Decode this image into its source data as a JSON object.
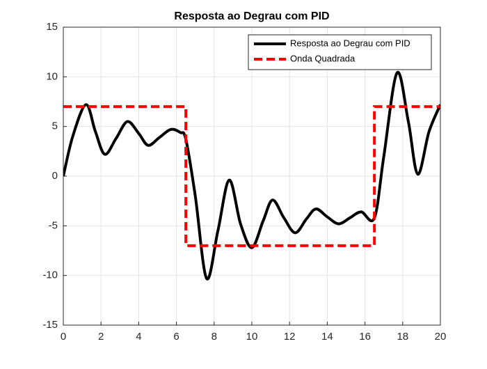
{
  "chart_data": {
    "type": "line",
    "title": "Resposta ao Degrau com PID",
    "series": [
      {
        "name": "Resposta ao Degrau com PID",
        "color": "#000000",
        "dash": "solid",
        "x": [
          0,
          0.5,
          1.2,
          1.7,
          2.2,
          2.8,
          3.4,
          4.0,
          4.5,
          5.1,
          5.7,
          6.2,
          6.5,
          7.0,
          7.6,
          8.2,
          8.8,
          9.4,
          10.0,
          10.6,
          11.1,
          11.7,
          12.3,
          12.9,
          13.4,
          14.0,
          14.6,
          15.2,
          15.8,
          16.5,
          17.0,
          17.7,
          18.3,
          18.8,
          19.4,
          20
        ],
        "values": [
          0,
          4,
          7.2,
          4.5,
          2.2,
          3.8,
          5.5,
          4.3,
          3.1,
          3.9,
          4.7,
          4.4,
          3.7,
          -2,
          -10.3,
          -5.5,
          -0.4,
          -4.8,
          -7.2,
          -4.5,
          -2.4,
          -4.2,
          -5.7,
          -4.3,
          -3.3,
          -4.1,
          -4.8,
          -4.2,
          -3.6,
          -4.2,
          2,
          10.4,
          5.5,
          0.2,
          4.5,
          7.2
        ]
      },
      {
        "name": "Onda Quadrada",
        "color": "#ff0000",
        "dash": "dashed",
        "x": [
          0,
          6.5,
          6.5,
          16.5,
          16.5,
          20
        ],
        "values": [
          7,
          7,
          -7,
          -7,
          7,
          7
        ]
      }
    ],
    "xlim": [
      0,
      20
    ],
    "xticks": [
      0,
      2,
      4,
      6,
      8,
      10,
      12,
      14,
      16,
      18,
      20
    ],
    "ylim": [
      -15,
      15
    ],
    "yticks": [
      -15,
      -10,
      -5,
      0,
      5,
      10,
      15
    ],
    "grid": true,
    "legend": "upper right"
  }
}
